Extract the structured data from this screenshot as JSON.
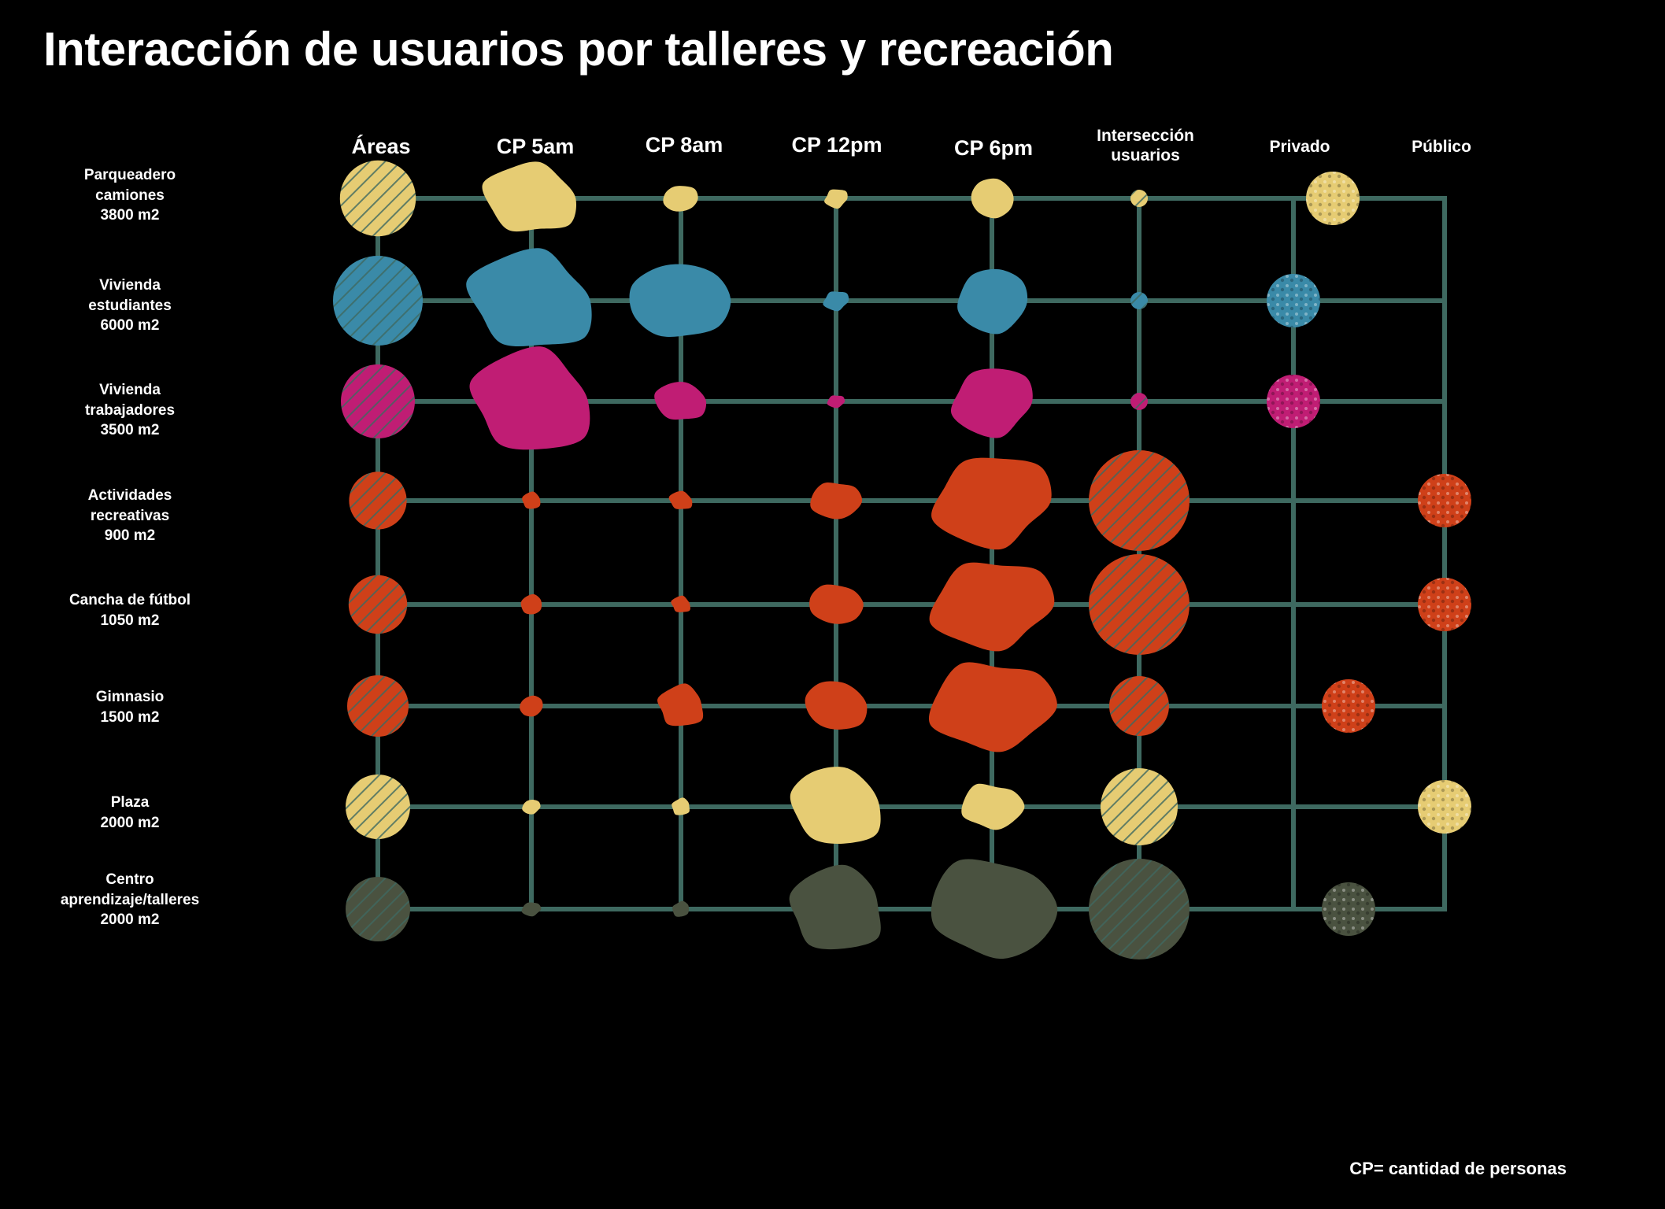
{
  "title": "Interacción de usuarios por talleres y recreación",
  "columns": [
    "Áreas",
    "CP 5am",
    "CP 8am",
    "CP 12pm",
    "CP 6pm",
    "Intersección usuarios",
    "Privado",
    "Público"
  ],
  "rows": [
    {
      "label": "Parqueadero\ncamiones\n3800 m2",
      "color": "#E6CC73",
      "area": 3800,
      "cp": [
        5,
        1.5,
        0.8,
        2.2
      ],
      "intersection": 0.3,
      "access": "privado"
    },
    {
      "label": "Vivienda\nestudiantes\n6000 m2",
      "color": "#3A8AA8",
      "area": 6000,
      "cp": [
        7,
        5.5,
        0.9,
        4
      ],
      "intersection": 0.3,
      "access": "privado"
    },
    {
      "label": "Vivienda\ntrabajadores\n3500 m2",
      "color": "#C01D74",
      "area": 3500,
      "cp": [
        7,
        2.5,
        0.4,
        4.5
      ],
      "intersection": 0.3,
      "access": "privado"
    },
    {
      "label": "Actividades\nrecreativas\n900 m2",
      "color": "#CF4019",
      "area": 900,
      "cp": [
        0.6,
        0.8,
        2.4,
        6.5
      ],
      "intersection": 5,
      "access": "público"
    },
    {
      "label": "Cancha de fútbol\n1050 m2",
      "color": "#CF4019",
      "area": 1050,
      "cp": [
        0.8,
        0.6,
        2.6,
        6.5
      ],
      "intersection": 5,
      "access": "público"
    },
    {
      "label": "Gimnasio\n1500 m2",
      "color": "#CF4019",
      "area": 1500,
      "cp": [
        0.9,
        2.4,
        3.2,
        6.6
      ],
      "intersection": 2.4,
      "access": "privado"
    },
    {
      "label": "Plaza\n2000 m2",
      "color": "#E6CC73",
      "area": 2000,
      "cp": [
        0.5,
        0.6,
        5.2,
        3
      ],
      "intersection": 3.5,
      "access": "público"
    },
    {
      "label": "Centro\naprendizaje/talleres\n2000 m2",
      "color": "#4A5240",
      "area": 2000,
      "cp": [
        0.5,
        0.5,
        5.5,
        7
      ],
      "intersection": 5,
      "access": "privado"
    }
  ],
  "legend": "CP= cantidad de personas",
  "colors": {
    "grid": "#3E6960",
    "background": "#000000"
  }
}
